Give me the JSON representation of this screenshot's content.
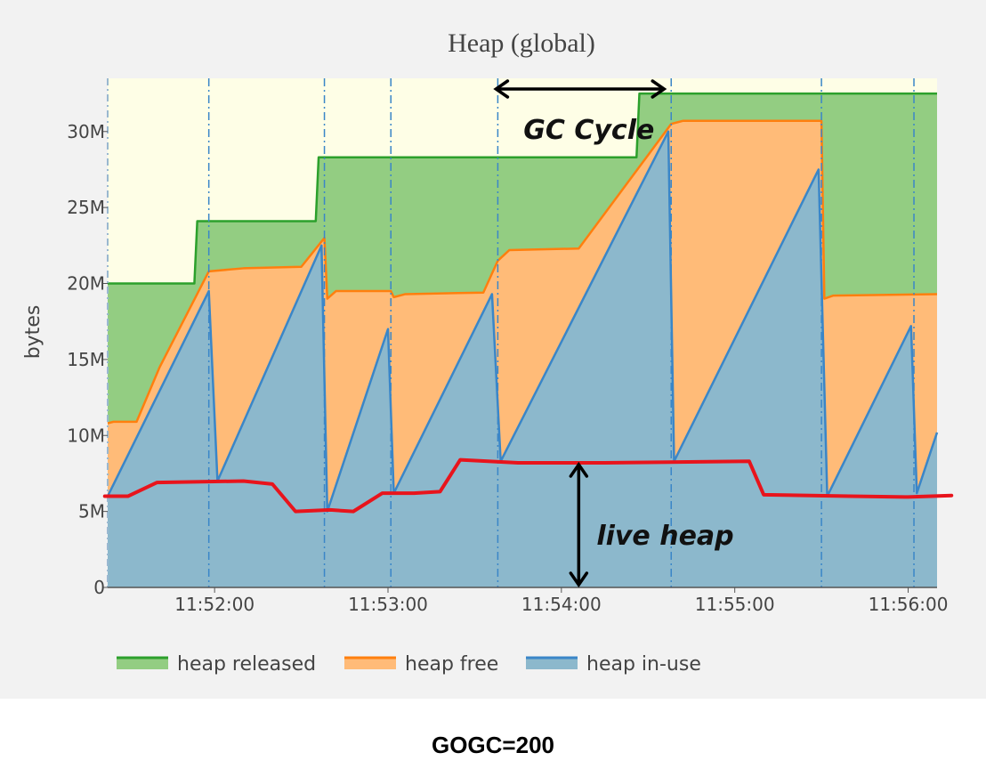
{
  "chart_data": {
    "type": "area",
    "title": "Heap (global)",
    "ylabel": "bytes",
    "xlabel": "",
    "stacked": true,
    "x_range": [
      "11:51:23",
      "11:56:10"
    ],
    "ylim": [
      0,
      33500000
    ],
    "y_ticks": [
      {
        "value": 0,
        "label": "0"
      },
      {
        "value": 5000000,
        "label": "5M"
      },
      {
        "value": 10000000,
        "label": "10M"
      },
      {
        "value": 15000000,
        "label": "15M"
      },
      {
        "value": 20000000,
        "label": "20M"
      },
      {
        "value": 25000000,
        "label": "25M"
      },
      {
        "value": 30000000,
        "label": "30M"
      }
    ],
    "x_ticks": [
      {
        "value": "11:52:00",
        "label": "11:52:00"
      },
      {
        "value": "11:53:00",
        "label": "11:53:00"
      },
      {
        "value": "11:54:00",
        "label": "11:54:00"
      },
      {
        "value": "11:55:00",
        "label": "11:55:00"
      },
      {
        "value": "11:56:00",
        "label": "11:56:00"
      }
    ],
    "gc_events": [
      "11:51:58",
      "11:52:38",
      "11:53:01",
      "11:53:38",
      "11:54:38",
      "11:55:30",
      "11:56:02"
    ],
    "legend": {
      "placement": "bottom-left",
      "orientation": "horizontal"
    },
    "colors": {
      "released_fill": "#93cd82",
      "released_line": "#2ca02c",
      "free_fill": "#ffbb78",
      "free_line": "#ff7f0e",
      "inuse_fill": "#8cb8cc",
      "inuse_line": "#3a86c8",
      "background": "#fefee6",
      "gc_line": "#3a86c8",
      "live_heap": "#e8141c"
    },
    "series": [
      {
        "name": "heap released",
        "key": "released",
        "points": [
          [
            "11:51:23",
            20000000
          ],
          [
            "11:51:53",
            20000000
          ],
          [
            "11:51:54",
            24100000
          ],
          [
            "11:52:35",
            24100000
          ],
          [
            "11:52:36",
            28300000
          ],
          [
            "11:54:26",
            28300000
          ],
          [
            "11:54:27",
            32500000
          ],
          [
            "11:56:10",
            32500000
          ]
        ]
      },
      {
        "name": "heap free",
        "key": "free",
        "points": [
          [
            "11:51:23",
            10800000
          ],
          [
            "11:51:25",
            10900000
          ],
          [
            "11:51:33",
            10900000
          ],
          [
            "11:51:41",
            14500000
          ],
          [
            "11:51:58",
            20800000
          ],
          [
            "11:52:10",
            21000000
          ],
          [
            "11:52:30",
            21100000
          ],
          [
            "11:52:38",
            23000000
          ],
          [
            "11:52:39",
            19000000
          ],
          [
            "11:52:42",
            19500000
          ],
          [
            "11:53:01",
            19500000
          ],
          [
            "11:53:02",
            19100000
          ],
          [
            "11:53:06",
            19300000
          ],
          [
            "11:53:33",
            19400000
          ],
          [
            "11:53:38",
            21500000
          ],
          [
            "11:53:42",
            22200000
          ],
          [
            "11:54:06",
            22300000
          ],
          [
            "11:54:38",
            30500000
          ],
          [
            "11:54:42",
            30700000
          ],
          [
            "11:55:30",
            30700000
          ],
          [
            "11:55:31",
            19000000
          ],
          [
            "11:55:34",
            19200000
          ],
          [
            "11:56:10",
            19300000
          ]
        ]
      },
      {
        "name": "heap in-use",
        "key": "inuse",
        "points": [
          [
            "11:51:23",
            6000000
          ],
          [
            "11:51:58",
            19500000
          ],
          [
            "11:52:01",
            7000000
          ],
          [
            "11:52:37",
            22500000
          ],
          [
            "11:52:39",
            5000000
          ],
          [
            "11:53:00",
            17000000
          ],
          [
            "11:53:02",
            6200000
          ],
          [
            "11:53:36",
            19300000
          ],
          [
            "11:53:39",
            8300000
          ],
          [
            "11:54:37",
            30000000
          ],
          [
            "11:54:39",
            8300000
          ],
          [
            "11:55:29",
            27500000
          ],
          [
            "11:55:32",
            6000000
          ],
          [
            "11:56:01",
            17200000
          ],
          [
            "11:56:03",
            6200000
          ],
          [
            "11:56:10",
            10200000
          ]
        ]
      }
    ],
    "annotations": {
      "gc_cycle": {
        "text": "GC Cycle",
        "from": "11:53:38",
        "to": "11:54:38",
        "y": 33200000
      },
      "live_heap": {
        "text": "live heap",
        "at": "11:54:06",
        "path": [
          [
            "11:51:22",
            6000000
          ],
          [
            "11:51:30",
            6000000
          ],
          [
            "11:51:40",
            6900000
          ],
          [
            "11:52:10",
            7000000
          ],
          [
            "11:52:20",
            6800000
          ],
          [
            "11:52:28",
            5000000
          ],
          [
            "11:52:40",
            5100000
          ],
          [
            "11:52:48",
            5000000
          ],
          [
            "11:52:58",
            6200000
          ],
          [
            "11:53:09",
            6200000
          ],
          [
            "11:53:18",
            6300000
          ],
          [
            "11:53:25",
            8400000
          ],
          [
            "11:53:45",
            8200000
          ],
          [
            "11:54:15",
            8200000
          ],
          [
            "11:55:05",
            8300000
          ],
          [
            "11:55:10",
            6100000
          ],
          [
            "11:55:40",
            6000000
          ],
          [
            "11:56:00",
            5950000
          ],
          [
            "11:56:15",
            6050000
          ]
        ]
      }
    }
  },
  "caption": "GOGC=200"
}
